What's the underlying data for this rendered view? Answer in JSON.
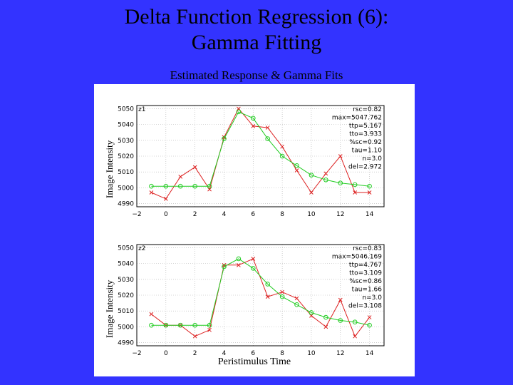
{
  "slide": {
    "title_line1": "Delta Function Regression (6):",
    "title_line2": "Gamma Fitting",
    "subtitle": "Estimated Response & Gamma Fits"
  },
  "colors": {
    "background": "#3333ff",
    "estimated": "#dd2222",
    "gamma_fit": "#22cc22",
    "grid": "#b0b0b0"
  },
  "chart_data": [
    {
      "type": "line",
      "panel_label": "z1",
      "ylabel": "Image Intensity",
      "xlim": [
        -2,
        15
      ],
      "ylim": [
        4988,
        5052
      ],
      "xticks": [
        -2,
        0,
        2,
        4,
        6,
        8,
        10,
        12,
        14
      ],
      "yticks": [
        4990,
        5000,
        5010,
        5020,
        5030,
        5040,
        5050
      ],
      "grid": true,
      "annotations": [
        "rsc=0.82",
        "max=5047.762",
        "ttp=5.167",
        "tto=3.933",
        "%sc=0.92",
        "tau=1.10",
        "n=3.0",
        "del=2.972"
      ],
      "series": [
        {
          "marker": "x",
          "x": [
            -1,
            0,
            1,
            2,
            3,
            4,
            5,
            6,
            7,
            8,
            9,
            10,
            11,
            12,
            13,
            14
          ],
          "y": [
            4997,
            4993,
            5007,
            5013,
            4999,
            5032,
            5050,
            5039,
            5038,
            5026,
            5011,
            4997,
            5009,
            5020,
            4997,
            4997
          ]
        },
        {
          "marker": "o",
          "x": [
            -1,
            0,
            1,
            2,
            3,
            4,
            5,
            6,
            7,
            8,
            9,
            10,
            11,
            12,
            13,
            14
          ],
          "y": [
            5001,
            5001,
            5001,
            5001,
            5001,
            5031,
            5048,
            5044,
            5031,
            5020,
            5014,
            5008,
            5005,
            5003,
            5002,
            5001
          ]
        }
      ]
    },
    {
      "type": "line",
      "panel_label": "z2",
      "ylabel": "Image Intensity",
      "xlabel": "Peristimulus Time",
      "xlim": [
        -2,
        15
      ],
      "ylim": [
        4988,
        5052
      ],
      "xticks": [
        -2,
        0,
        2,
        4,
        6,
        8,
        10,
        12,
        14
      ],
      "yticks": [
        4990,
        5000,
        5010,
        5020,
        5030,
        5040,
        5050
      ],
      "grid": true,
      "annotations": [
        "rsc=0.83",
        "max=5046.169",
        "ttp=4.767",
        "tto=3.109",
        "%sc=0.86",
        "tau=1.66",
        "n=3.0",
        "del=3.108"
      ],
      "series": [
        {
          "marker": "x",
          "x": [
            -1,
            0,
            1,
            2,
            3,
            4,
            5,
            6,
            7,
            8,
            9,
            10,
            11,
            12,
            13,
            14
          ],
          "y": [
            5008,
            5001,
            5001,
            4994,
            4998,
            5039,
            5039,
            5043,
            5019,
            5022,
            5018,
            5007,
            5000,
            5017,
            4994,
            5006
          ]
        },
        {
          "marker": "o",
          "x": [
            -1,
            0,
            1,
            2,
            3,
            4,
            5,
            6,
            7,
            8,
            9,
            10,
            11,
            12,
            13,
            14
          ],
          "y": [
            5001,
            5001,
            5001,
            5001,
            5001,
            5038,
            5043,
            5037,
            5027,
            5019,
            5014,
            5009,
            5006,
            5004,
            5003,
            5001
          ]
        }
      ]
    }
  ]
}
